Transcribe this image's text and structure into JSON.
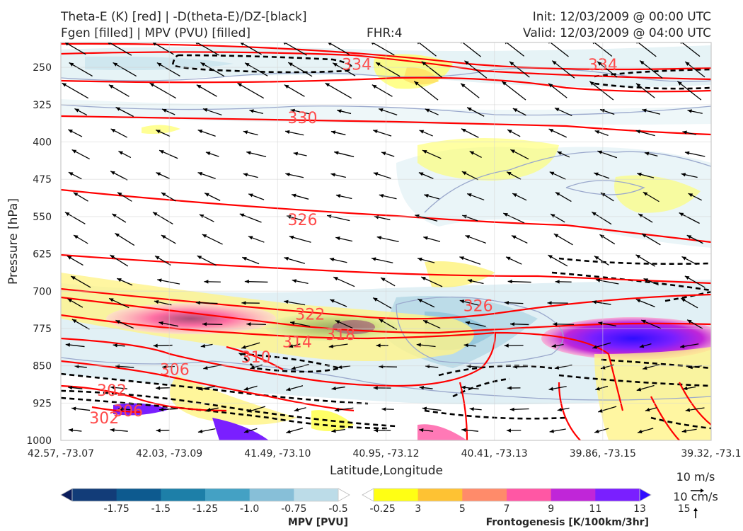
{
  "header": {
    "title_line1": "Theta-E (K) [red] | -D(theta-E)/DZ-[black]",
    "title_line2": "Fgen [filled] | MPV (PVU) [filled]",
    "fhr": "FHR:4",
    "init": "Init: 12/03/2009 @ 00:00 UTC",
    "valid": "Valid: 12/03/2009 @ 04:00 UTC"
  },
  "colors": {
    "theta_e": "#ff0000",
    "contour_label": "#ff4a4a",
    "neg_dthetae": "#000000",
    "mpv_outline": "#9aa8cc",
    "frame": "#c8c8c8"
  },
  "chart_data": {
    "type": "cross-section",
    "xlabel": "Latitude,Longitude",
    "ylabel": "Pressure [hPa]",
    "x_ticks": [
      "42.57, -73.07",
      "42.03, -73.09",
      "41.49, -73.10",
      "40.95, -73.12",
      "40.41, -73.13",
      "39.86, -73.15",
      "39.32, -73.1"
    ],
    "y_ticks": [
      250,
      325,
      400,
      475,
      550,
      625,
      700,
      775,
      850,
      925,
      1000
    ],
    "ylim": [
      1000,
      200
    ],
    "y_scale": "linear (inverted)",
    "grid": true,
    "theta_e_contour_labels": [
      {
        "value": "334",
        "x": 2.73,
        "p": 246
      },
      {
        "value": "334",
        "x": 5.0,
        "p": 247
      },
      {
        "value": "330",
        "x": 2.23,
        "p": 354
      },
      {
        "value": "326",
        "x": 2.23,
        "p": 559
      },
      {
        "value": "322",
        "x": 2.3,
        "p": 749
      },
      {
        "value": "318",
        "x": 2.58,
        "p": 789
      },
      {
        "value": "314",
        "x": 2.18,
        "p": 804
      },
      {
        "value": "310",
        "x": 1.8,
        "p": 835
      },
      {
        "value": "306",
        "x": 1.05,
        "p": 860
      },
      {
        "value": "306",
        "x": 0.62,
        "p": 943
      },
      {
        "value": "302",
        "x": 0.47,
        "p": 902
      },
      {
        "value": "302",
        "x": 0.4,
        "p": 957
      },
      {
        "value": "326",
        "x": 3.85,
        "p": 732
      }
    ],
    "wind_vectors": {
      "scale_label": "10 m/s",
      "vertical_scale_label": "10 cm/s"
    },
    "colorbars": [
      {
        "name": "MPV [PVU]",
        "ticks": [
          "-1.75",
          "-1.5",
          "-1.25",
          "-1.0",
          "-0.75",
          "-0.5",
          "-0.25"
        ],
        "colors": [
          "#0b1d5c",
          "#123c78",
          "#0d5a8f",
          "#1d7fa8",
          "#44a1c4",
          "#87bfd8",
          "#bcdce8",
          "#ffffff"
        ]
      },
      {
        "name": "Frontogenesis [K/100km/3hr]",
        "ticks": [
          "3",
          "5",
          "7",
          "9",
          "11",
          "13",
          "15"
        ],
        "colors": [
          "#ffffff",
          "#ffff14",
          "#fec233",
          "#ff8b6a",
          "#ff57a4",
          "#c026d8",
          "#7a1fff",
          "#2f0dff"
        ]
      }
    ]
  }
}
